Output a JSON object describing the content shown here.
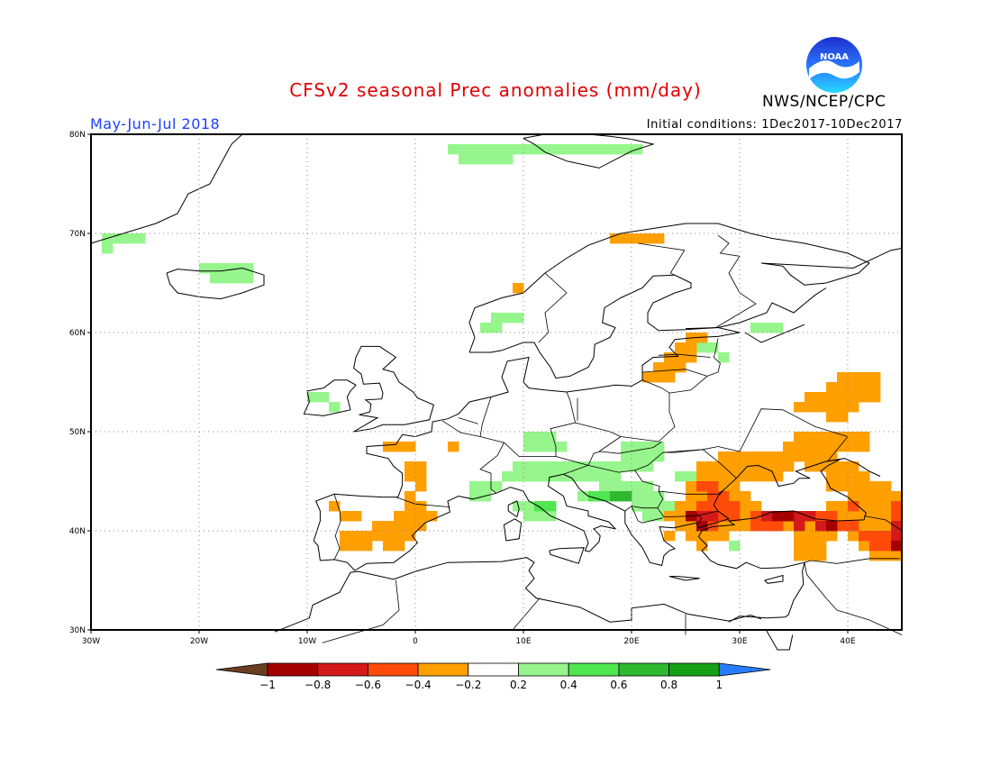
{
  "header": {
    "title": "CFSv2 seasonal Prec anomalies (mm/day)",
    "period": "May-Jun-Jul 2018",
    "initial_conditions": "Initial conditions: 1Dec2017-10Dec2017",
    "agency": "NWS/NCEP/CPC",
    "logo_text": "NOAA"
  },
  "map": {
    "lon_range": [
      -30,
      45
    ],
    "lat_range": [
      30,
      80
    ],
    "lon_ticks": [
      "30W",
      "20W",
      "10W",
      "0",
      "10E",
      "20E",
      "30E",
      "40E"
    ],
    "lat_ticks": [
      "30N",
      "40N",
      "50N",
      "60N",
      "70N",
      "80N"
    ],
    "grid": true
  },
  "colorbar": {
    "labels": [
      "-1",
      "-0.8",
      "-0.6",
      "-0.4",
      "-0.2",
      "0.2",
      "0.4",
      "0.6",
      "0.8",
      "1"
    ],
    "colors": [
      "#6b3e22",
      "#a50000",
      "#d41919",
      "#ff4b0a",
      "#ff9f00",
      "#ffffff",
      "#96f58c",
      "#50e650",
      "#2fb82f",
      "#14a014",
      "#2a7cff"
    ]
  },
  "colors": {
    "orange": "#ff9f00",
    "red_orange": "#ff4b0a",
    "red": "#d41919",
    "dark_red": "#a50000",
    "light_green": "#96f58c",
    "green": "#50e650",
    "mid_green": "#2fb82f"
  }
}
